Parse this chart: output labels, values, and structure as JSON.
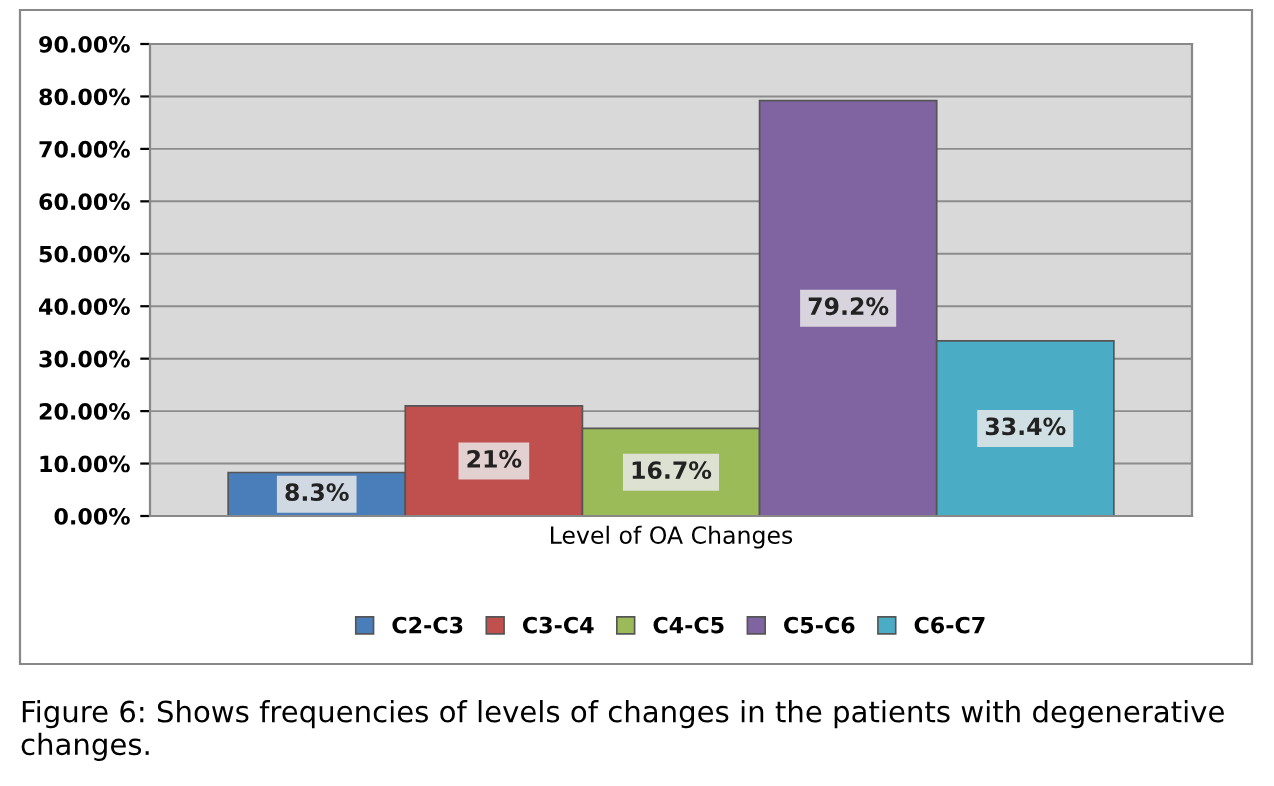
{
  "chart_data": {
    "type": "bar",
    "categories": [
      "Level of OA Changes"
    ],
    "series": [
      {
        "name": "C2-C3",
        "color": "#4a7ebb",
        "values": [
          8.3
        ],
        "value_labels": [
          "8.3%"
        ]
      },
      {
        "name": "C3-C4",
        "color": "#c0504d",
        "values": [
          21
        ],
        "value_labels": [
          "21%"
        ]
      },
      {
        "name": "C4-C5",
        "color": "#9bbb59",
        "values": [
          16.7
        ],
        "value_labels": [
          "16.7%"
        ]
      },
      {
        "name": "C5-C6",
        "color": "#8064a2",
        "values": [
          79.2
        ],
        "value_labels": [
          "79.2%"
        ]
      },
      {
        "name": "C6-C7",
        "color": "#4bacc6",
        "values": [
          33.4
        ],
        "value_labels": [
          "33.4%"
        ]
      }
    ],
    "ylim": [
      0,
      90
    ],
    "yticks": [
      {
        "value": 0,
        "label": "0.00%"
      },
      {
        "value": 10,
        "label": "10.00%"
      },
      {
        "value": 20,
        "label": "20.00%"
      },
      {
        "value": 30,
        "label": "30.00%"
      },
      {
        "value": 40,
        "label": "40.00%"
      },
      {
        "value": 50,
        "label": "50.00%"
      },
      {
        "value": 60,
        "label": "60.00%"
      },
      {
        "value": 70,
        "label": "70.00%"
      },
      {
        "value": 80,
        "label": "80.00%"
      },
      {
        "value": 90,
        "label": "90.00%"
      }
    ],
    "grid": "y",
    "legend": "bottom",
    "annotations": [
      "Figure 6: Shows frequencies of levels of changes in the patients with degenerative changes."
    ]
  }
}
